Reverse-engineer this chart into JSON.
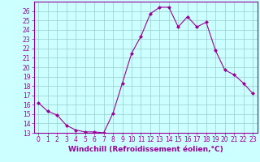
{
  "x": [
    0,
    1,
    2,
    3,
    4,
    5,
    6,
    7,
    8,
    9,
    10,
    11,
    12,
    13,
    14,
    15,
    16,
    17,
    18,
    19,
    20,
    21,
    22,
    23
  ],
  "y": [
    16.2,
    15.3,
    14.9,
    13.8,
    13.3,
    13.1,
    13.1,
    13.0,
    15.1,
    18.3,
    21.5,
    23.3,
    25.7,
    26.4,
    26.4,
    24.3,
    25.4,
    24.3,
    24.8,
    21.8,
    19.7,
    19.2,
    18.3,
    17.2
  ],
  "line_color": "#990099",
  "marker": "D",
  "marker_size": 2,
  "bg_color": "#ccffff",
  "grid_color": "#99cccc",
  "xlabel": "Windchill (Refroidissement éolien,°C)",
  "xlabel_color": "#990099",
  "tick_color": "#990099",
  "ylim": [
    13,
    27
  ],
  "yticks": [
    13,
    14,
    15,
    16,
    17,
    18,
    19,
    20,
    21,
    22,
    23,
    24,
    25,
    26
  ],
  "xlim": [
    -0.5,
    23.5
  ],
  "xticks": [
    0,
    1,
    2,
    3,
    4,
    5,
    6,
    7,
    8,
    9,
    10,
    11,
    12,
    13,
    14,
    15,
    16,
    17,
    18,
    19,
    20,
    21,
    22,
    23
  ],
  "xtick_labels": [
    "0",
    "1",
    "2",
    "3",
    "4",
    "5",
    "6",
    "7",
    "8",
    "9",
    "10",
    "11",
    "12",
    "13",
    "14",
    "15",
    "16",
    "17",
    "18",
    "19",
    "20",
    "21",
    "22",
    "23"
  ],
  "spine_color": "#990099",
  "tick_fontsize": 5.5,
  "xlabel_fontsize": 6.5
}
